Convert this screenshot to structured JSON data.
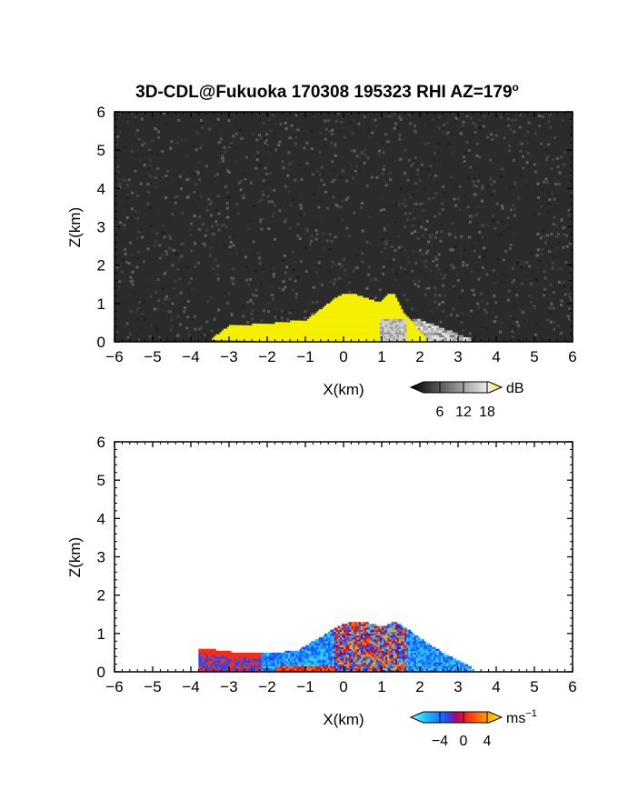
{
  "title_main": "3D-CDL@Fukuoka 170308 195323 RHI AZ=179",
  "title_deg": "o",
  "colors": {
    "echo_yellow": "#f4f000",
    "reflectivity_bg": "#2b2b2b",
    "velocity_neg": "#1a6cff",
    "velocity_pos": "#ff2a10"
  },
  "chart_data": [
    {
      "type": "heatmap",
      "panel": "reflectivity",
      "xlabel": "X(km)",
      "ylabel": "Z(km)",
      "xlim": [
        -6,
        6
      ],
      "ylim": [
        0,
        6
      ],
      "xticks": [
        -6,
        -5,
        -4,
        -3,
        -2,
        -1,
        0,
        1,
        2,
        3,
        4,
        5,
        6
      ],
      "yticks": [
        0,
        1,
        2,
        3,
        4,
        5,
        6
      ],
      "colorbar": {
        "unit": "dB",
        "ticks": [
          6,
          12,
          18
        ]
      },
      "echo_top_profile": {
        "x": [
          -3.5,
          -3.0,
          -2.0,
          -1.0,
          -0.6,
          -0.2,
          0.0,
          0.3,
          0.6,
          0.9,
          1.1,
          1.3,
          1.5,
          1.8,
          2.1
        ],
        "z": [
          0.05,
          0.4,
          0.45,
          0.55,
          0.85,
          1.15,
          1.25,
          1.2,
          1.1,
          1.0,
          1.2,
          1.25,
          0.8,
          0.45,
          0.1
        ]
      },
      "weak_echo_extent_km": [
        1.8,
        3.3
      ]
    },
    {
      "type": "heatmap",
      "panel": "doppler_velocity",
      "xlabel": "X(km)",
      "ylabel": "Z(km)",
      "xlim": [
        -6,
        6
      ],
      "ylim": [
        0,
        6
      ],
      "xticks": [
        -6,
        -5,
        -4,
        -3,
        -2,
        -1,
        0,
        1,
        2,
        3,
        4,
        5,
        6
      ],
      "yticks": [
        0,
        1,
        2,
        3,
        4,
        5,
        6
      ],
      "colorbar": {
        "unit": "ms",
        "unit_exp": "−1",
        "ticks": [
          "−4",
          "0",
          "4"
        ]
      },
      "echo_top_profile": {
        "x": [
          -3.8,
          -3.0,
          -2.0,
          -1.2,
          -0.6,
          -0.2,
          0.2,
          0.6,
          1.0,
          1.3,
          1.7,
          2.2,
          2.8,
          3.3
        ],
        "z": [
          0.6,
          0.5,
          0.45,
          0.55,
          0.9,
          1.15,
          1.3,
          1.25,
          1.15,
          1.3,
          1.05,
          0.7,
          0.35,
          0.1
        ]
      }
    }
  ]
}
